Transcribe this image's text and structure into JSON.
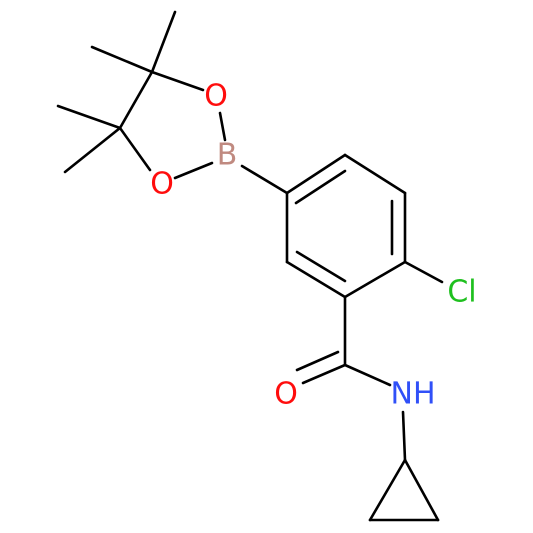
{
  "atoms": [
    {
      "label": "O",
      "color": "#ff0d0d"
    },
    {
      "label": "O",
      "color": "#ff0d0d"
    },
    {
      "label": "B",
      "color": "#c08a80"
    },
    {
      "label": "Cl",
      "color": "#1fc01f"
    },
    {
      "label": "O",
      "color": "#ff0d0d"
    },
    {
      "label": "NH",
      "color": "#3050f8"
    }
  ]
}
